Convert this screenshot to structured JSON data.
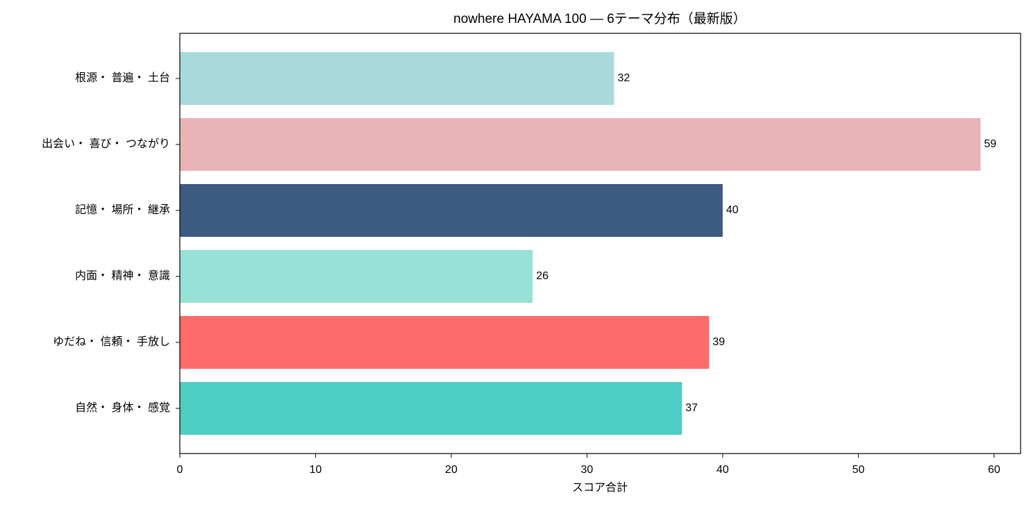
{
  "chart_data": {
    "type": "barh",
    "title": "nowhere HAYAMA 100 — 6テーマ分布（最新版）",
    "xlabel": "スコア合計",
    "categories": [
      "根源・ 普遍・ 土台",
      "出会い・ 喜び・ つながり",
      "記憶・ 場所・ 継承",
      "内面・ 精神・ 意識",
      "ゆだね・ 信頼・ 手放し",
      "自然・ 身体・ 感覚"
    ],
    "values": [
      32,
      59,
      40,
      26,
      39,
      37
    ],
    "colors": [
      "#a8dadc",
      "#e8b4b8",
      "#3d5a80",
      "#98e1d6",
      "#ff6b6b",
      "#4ecdc4"
    ],
    "xlim": [
      0,
      61.95
    ],
    "xticks": [
      0,
      10,
      20,
      30,
      40,
      50,
      60
    ]
  }
}
